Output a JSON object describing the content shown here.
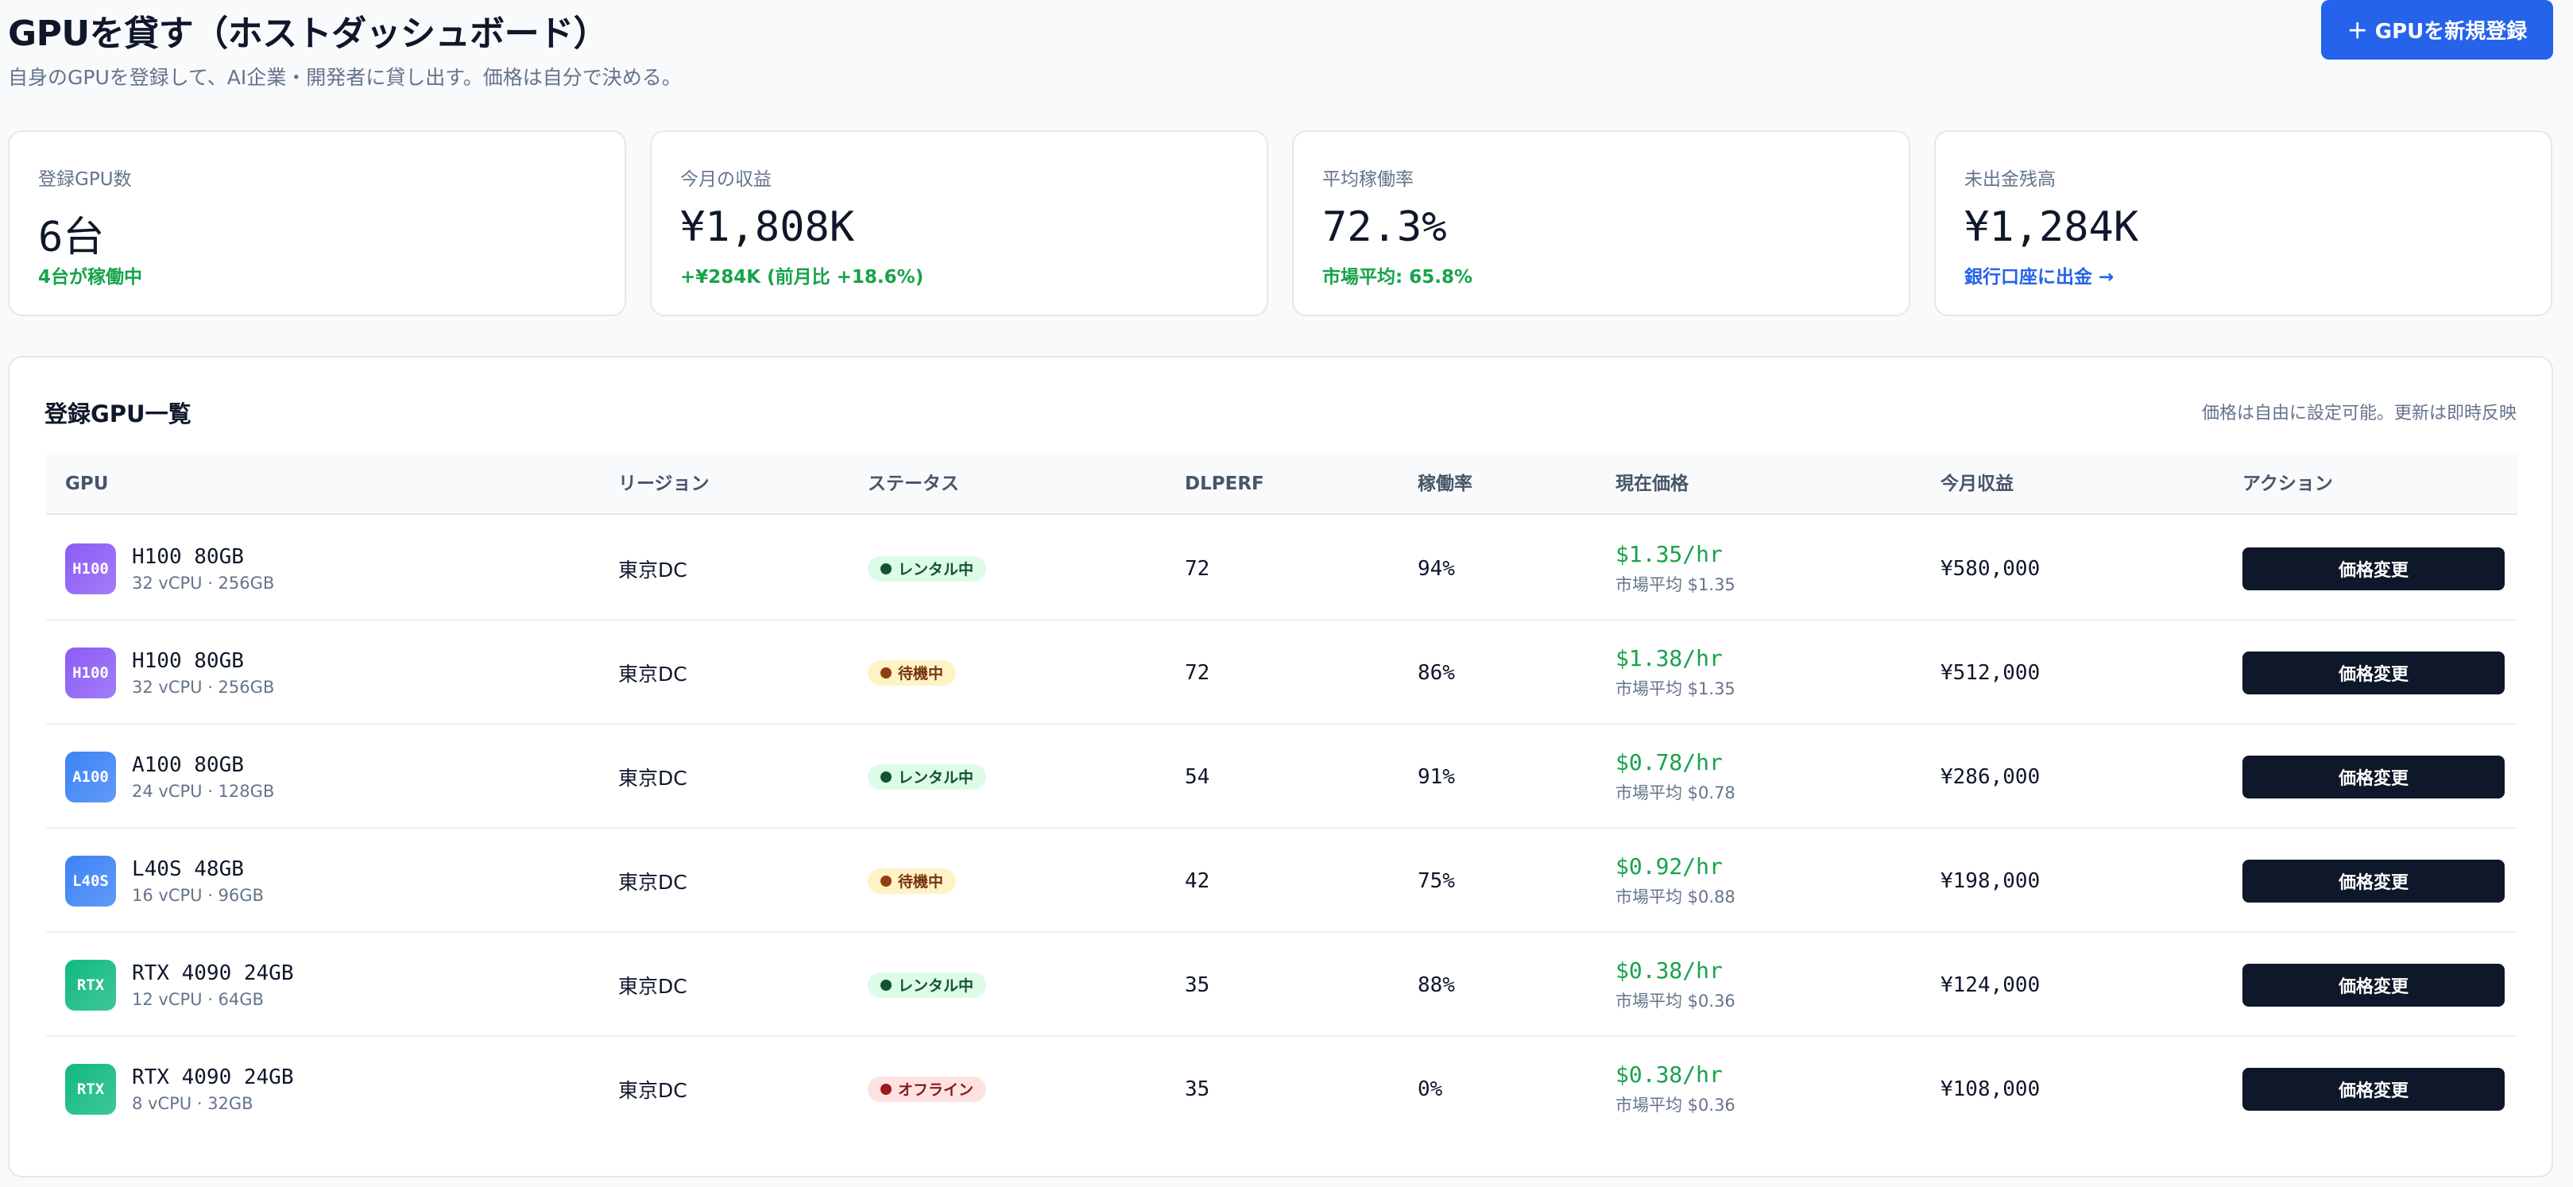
{
  "header": {
    "title": "GPUを貸す（ホストダッシュボード）",
    "subtitle": "自身のGPUを登録して、AI企業・開発者に貸し出す。価格は自分で決める。",
    "register_button": "＋ GPUを新規登録"
  },
  "stats": [
    {
      "label": "登録GPU数",
      "value": "6台",
      "note": "4台が稼働中"
    },
    {
      "label": "今月の収益",
      "value": "¥1,808K",
      "note": "+¥284K (前月比 +18.6%)"
    },
    {
      "label": "平均稼働率",
      "value": "72.3%",
      "note": "市場平均: 65.8%"
    },
    {
      "label": "未出金残高",
      "value": "¥1,284K",
      "note": "銀行口座に出金 →"
    }
  ],
  "table": {
    "title": "登録GPU一覧",
    "note": "価格は自由に設定可能。更新は即時反映",
    "columns": [
      "GPU",
      "リージョン",
      "ステータス",
      "DLPERF",
      "稼働率",
      "現在価格",
      "今月収益",
      "アクション"
    ],
    "rows": [
      {
        "badge": "H100",
        "badge_color": "#8b5cf6",
        "name": "H100 80GB",
        "spec": "32 vCPU · 256GB",
        "region": "東京DC",
        "status": "レンタル中",
        "status_type": "rent",
        "dlperf": "72",
        "util": "94%",
        "price": "$1.35/hr",
        "market": "市場平均 $1.35",
        "revenue": "¥580,000",
        "action": "価格変更"
      },
      {
        "badge": "H100",
        "badge_color": "#8b5cf6",
        "name": "H100 80GB",
        "spec": "32 vCPU · 256GB",
        "region": "東京DC",
        "status": "待機中",
        "status_type": "wait",
        "dlperf": "72",
        "util": "86%",
        "price": "$1.38/hr",
        "market": "市場平均 $1.35",
        "revenue": "¥512,000",
        "action": "価格変更"
      },
      {
        "badge": "A100",
        "badge_color": "#3b82f6",
        "name": "A100 80GB",
        "spec": "24 vCPU · 128GB",
        "region": "東京DC",
        "status": "レンタル中",
        "status_type": "rent",
        "dlperf": "54",
        "util": "91%",
        "price": "$0.78/hr",
        "market": "市場平均 $0.78",
        "revenue": "¥286,000",
        "action": "価格変更"
      },
      {
        "badge": "L40S",
        "badge_color": "#3b82f6",
        "name": "L40S 48GB",
        "spec": "16 vCPU · 96GB",
        "region": "東京DC",
        "status": "待機中",
        "status_type": "wait",
        "dlperf": "42",
        "util": "75%",
        "price": "$0.92/hr",
        "market": "市場平均 $0.88",
        "revenue": "¥198,000",
        "action": "価格変更"
      },
      {
        "badge": "RTX",
        "badge_color": "#10b981",
        "name": "RTX 4090 24GB",
        "spec": "12 vCPU · 64GB",
        "region": "東京DC",
        "status": "レンタル中",
        "status_type": "rent",
        "dlperf": "35",
        "util": "88%",
        "price": "$0.38/hr",
        "market": "市場平均 $0.36",
        "revenue": "¥124,000",
        "action": "価格変更"
      },
      {
        "badge": "RTX",
        "badge_color": "#10b981",
        "name": "RTX 4090 24GB",
        "spec": "8 vCPU · 32GB",
        "region": "東京DC",
        "status": "オフライン",
        "status_type": "off",
        "dlperf": "35",
        "util": "0%",
        "price": "$0.38/hr",
        "market": "市場平均 $0.36",
        "revenue": "¥108,000",
        "action": "価格変更"
      }
    ]
  }
}
